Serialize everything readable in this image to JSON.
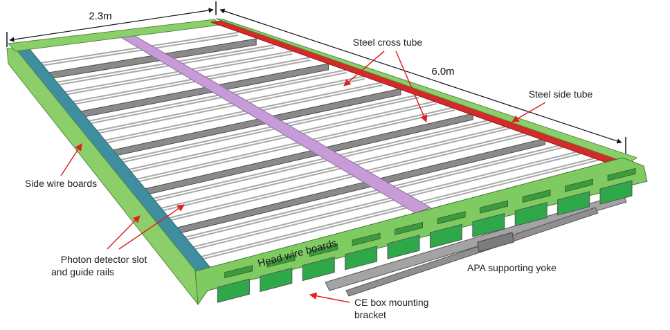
{
  "colors": {
    "frame_green": "#8ccf6a",
    "side_blue": "#3f8ea0",
    "side_red": "#d42a2a",
    "center_purple": "#c79ad8",
    "cross_tube_grey": "#8a8a8a",
    "rail_grey": "#a8a8a8",
    "yoke_grey": "#9a9a9a",
    "arrow_red": "#e02020",
    "head_board_green": "#5fc15f"
  },
  "dimensions": {
    "width": "2.3m",
    "length": "6.0m"
  },
  "labels": {
    "steel_cross_tube": "Steel cross tube",
    "steel_side_tube": "Steel side tube",
    "side_wire_boards": "Side wire boards",
    "photon_line1": "Photon detector slot",
    "photon_line2": "and guide rails",
    "head_wire_boards": "Head wire boards",
    "apa_supporting_yoke": "APA supporting yoke",
    "ce_box_line1": "CE box mounting",
    "ce_box_line2": "bracket"
  },
  "icons": {
    "pointer": "red-arrow-icon",
    "dimension": "dimension-line-icon"
  }
}
